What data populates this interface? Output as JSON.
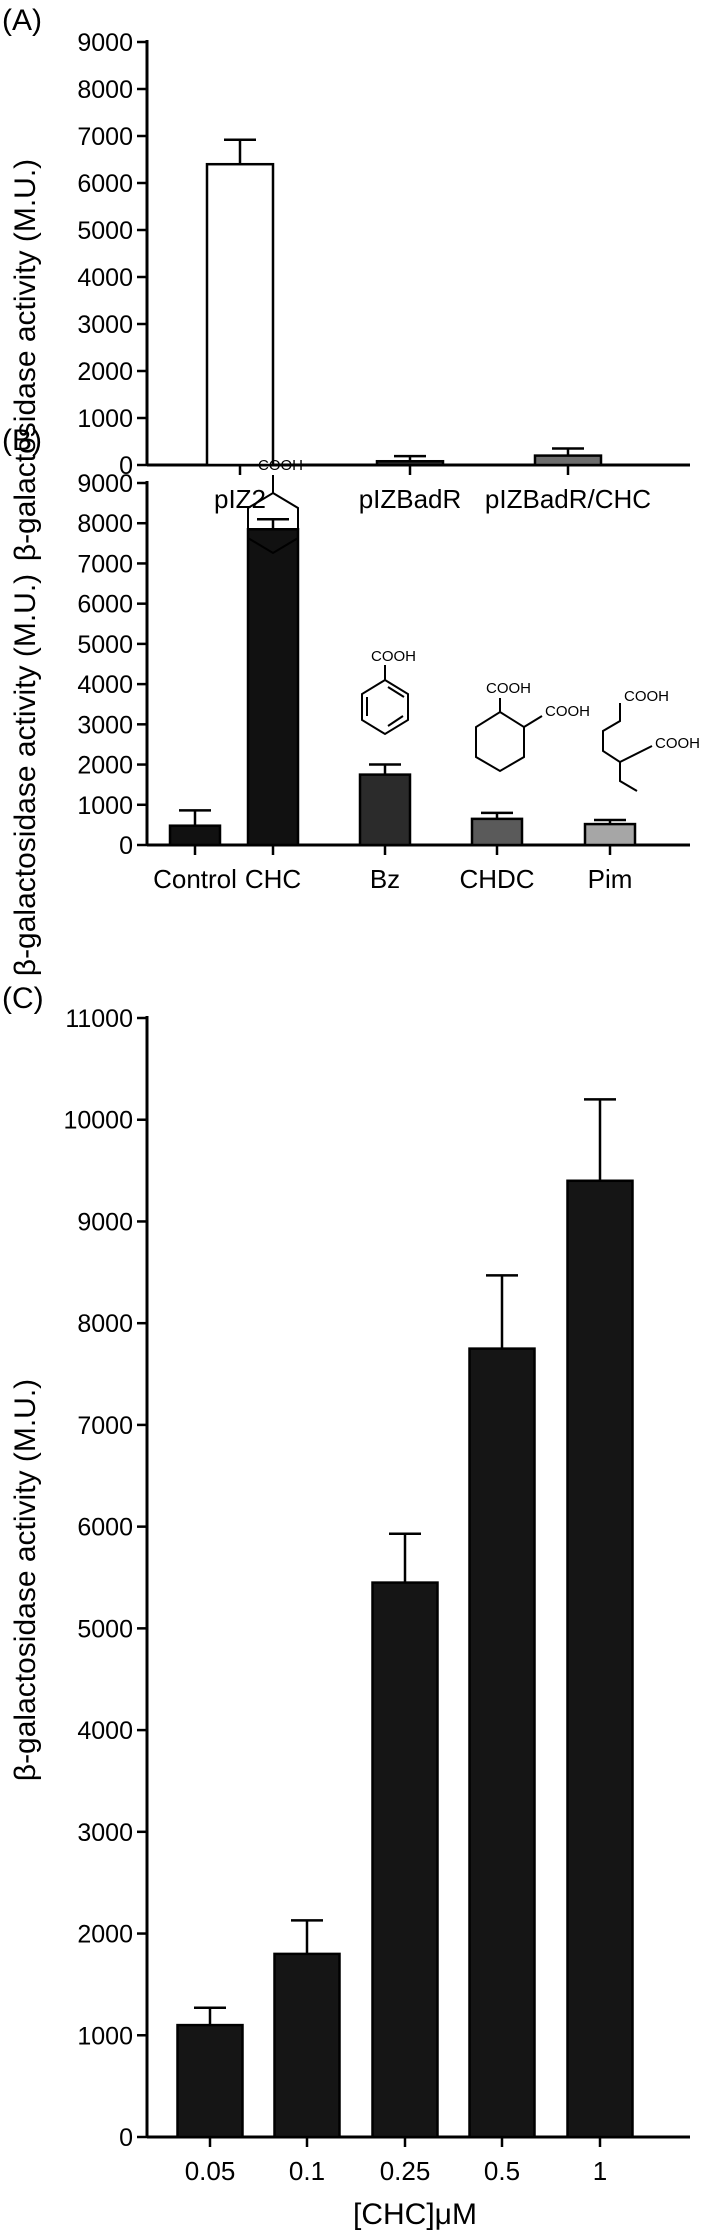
{
  "chart_data": [
    {
      "panel": "(A)",
      "type": "bar",
      "categories": [
        "pIZ2",
        "pIZBadR",
        "pIZBadR/CHC"
      ],
      "values": [
        6400,
        80,
        200
      ],
      "errors": [
        520,
        110,
        150
      ],
      "colors": [
        "#ffffff",
        "#2e2e2e",
        "#6d6d6d"
      ],
      "ylabel": "β-galactosidase activity (M.U.)",
      "xlabel": "",
      "ylim": [
        0,
        9000
      ],
      "yticks": [
        "0",
        "1000",
        "2000",
        "3000",
        "4000",
        "5000",
        "6000",
        "7000",
        "8000",
        "9000"
      ],
      "grid": false
    },
    {
      "panel": "(B)",
      "type": "bar",
      "categories": [
        "Control",
        "CHC",
        "Bz",
        "CHDC",
        "Pim"
      ],
      "values": [
        480,
        7850,
        1750,
        650,
        520
      ],
      "errors": [
        380,
        250,
        250,
        150,
        100
      ],
      "colors": [
        "#111111",
        "#111111",
        "#2b2b2b",
        "#5a5a5a",
        "#a6a6a6"
      ],
      "ylabel": "β-galactosidase activity (M.U.)",
      "xlabel": "",
      "ylim": [
        0,
        9000
      ],
      "yticks": [
        "0",
        "1000",
        "2000",
        "3000",
        "4000",
        "5000",
        "6000",
        "7000",
        "8000",
        "9000"
      ],
      "annotations": [
        "COOH",
        "COOH",
        "COOH",
        "COOH",
        "COOH",
        "COOH"
      ],
      "grid": false
    },
    {
      "panel": "(C)",
      "type": "bar",
      "categories": [
        "0.05",
        "0.1",
        "0.25",
        "0.5",
        "1"
      ],
      "values": [
        1100,
        1800,
        5450,
        7750,
        9400
      ],
      "errors": [
        170,
        330,
        480,
        720,
        800
      ],
      "colors": [
        "#151515",
        "#151515",
        "#151515",
        "#151515",
        "#151515"
      ],
      "ylabel": "β-galactosidase activity (M.U.)",
      "xlabel": "[CHC]μM",
      "ylim": [
        0,
        11000
      ],
      "yticks": [
        "0",
        "1000",
        "2000",
        "3000",
        "4000",
        "5000",
        "6000",
        "7000",
        "8000",
        "9000",
        "10000",
        "11000"
      ],
      "grid": false
    }
  ]
}
